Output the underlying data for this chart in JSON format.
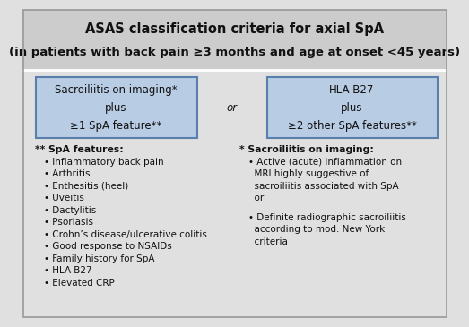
{
  "title_line1": "ASAS classification criteria for axial SpA",
  "title_line2": "(in patients with back pain ≥3 months and age at onset <45 years)",
  "title_bg": "#cccccc",
  "main_bg": "#e0e0e0",
  "box_bg": "#b8cce4",
  "box_border": "#5b7fad",
  "box_left_text": "Sacroiliitis on imaging*\nplus\n≥1 SpA feature**",
  "box_right_text": "HLA-B27\nplus\n≥2 other SpA features**",
  "or_text": "or",
  "left_header": "** SpA features:",
  "left_items": [
    "Inflammatory back pain",
    "Arthritis",
    "Enthesitis (heel)",
    "Uveitis",
    "Dactylitis",
    "Psoriasis",
    "Crohn’s disease/ulcerative colitis",
    "Good response to NSAIDs",
    "Family history for SpA",
    "HLA-B27",
    "Elevated CRP"
  ],
  "right_header": "* Sacroiliitis on imaging:",
  "right_items_line1": "• Active (acute) inflammation on\n  MRI highly suggestive of\n  sacroiliitis associated with SpA\n  or",
  "right_items_line2": "• Definite radiographic sacroiliitis\n  according to mod. New York\n  criteria",
  "text_color": "#111111",
  "font_size_title1": 10.5,
  "font_size_title2": 9.5,
  "font_size_box": 8.5,
  "font_size_body": 7.5,
  "font_size_header": 7.8
}
